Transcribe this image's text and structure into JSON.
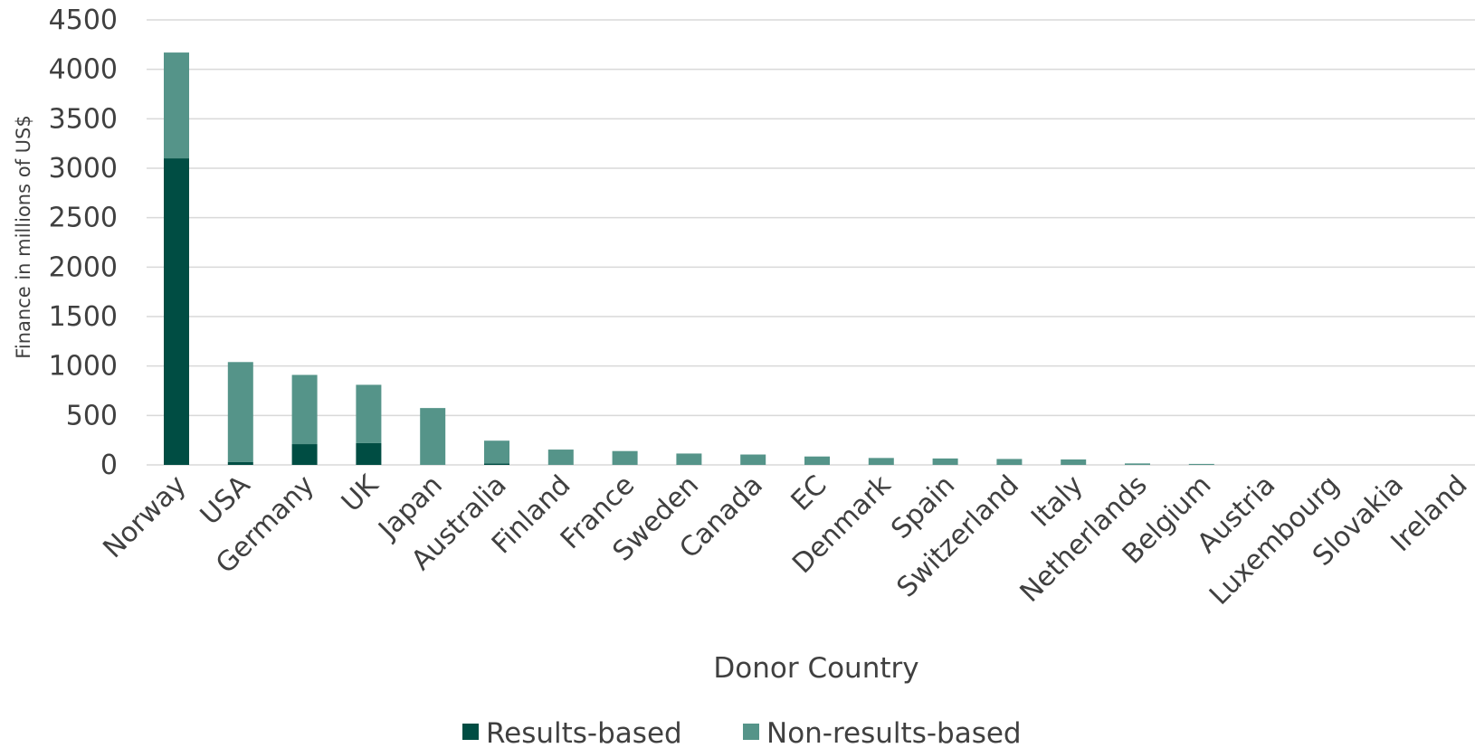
{
  "chart_data": {
    "type": "bar",
    "stacked": true,
    "categories": [
      "Norway",
      "USA",
      "Germany",
      "UK",
      "Japan",
      "Australia",
      "Finland",
      "France",
      "Sweden",
      "Canada",
      "EC",
      "Denmark",
      "Spain",
      "Switzerland",
      "Italy",
      "Netherlands",
      "Belgium",
      "Austria",
      "Luxembourg",
      "Slovakia",
      "Ireland"
    ],
    "series": [
      {
        "name": "Results-based",
        "color": "#004d43",
        "values": [
          3100,
          30,
          210,
          220,
          0,
          15,
          0,
          0,
          0,
          0,
          0,
          0,
          0,
          0,
          0,
          0,
          0,
          0,
          0,
          0,
          0
        ]
      },
      {
        "name": "Non-results-based",
        "color": "#559489",
        "values": [
          1070,
          1010,
          700,
          590,
          575,
          230,
          155,
          140,
          115,
          105,
          85,
          70,
          65,
          60,
          55,
          15,
          10,
          0,
          0,
          0,
          0
        ]
      }
    ],
    "xlabel": "Donor Country",
    "ylabel": "Finance in millions of US$",
    "ylim": [
      0,
      4500
    ],
    "yticks": [
      "0",
      "500",
      "1000",
      "1500",
      "2000",
      "2500",
      "3000",
      "3500",
      "4000",
      "4500"
    ],
    "grid": true,
    "legend_position": "bottom"
  }
}
